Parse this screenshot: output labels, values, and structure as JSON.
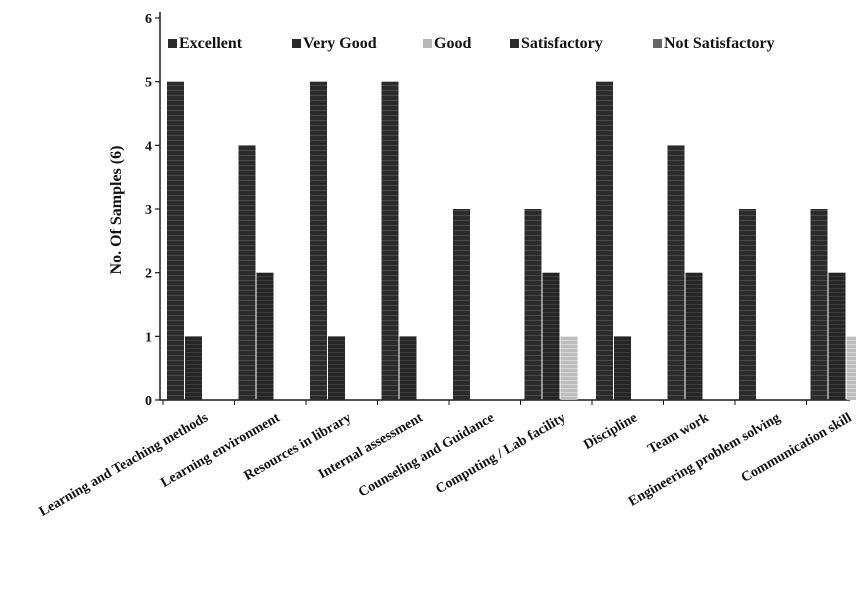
{
  "chart_data": {
    "type": "bar",
    "title": "",
    "xlabel": "",
    "ylabel": "No. Of Samples (6)",
    "ylim": [
      0,
      6
    ],
    "yticks": [
      0,
      1,
      2,
      3,
      4,
      5,
      6
    ],
    "grid": false,
    "legend_position": "top",
    "categories": [
      "Learning and Teaching methods",
      "Learning environment",
      "Resources in library",
      "Internal assessment",
      "Counseling and Guidance",
      "Computing / Lab facility",
      "Discipline",
      "Team work",
      "Engineering problem solving",
      "Communication skill"
    ],
    "series": [
      {
        "name": "Excellent",
        "color": "#2a2a2a",
        "values": [
          5,
          4,
          5,
          5,
          3,
          3,
          5,
          4,
          3,
          3
        ]
      },
      {
        "name": "Very Good",
        "color": "#222222",
        "values": [
          1,
          2,
          1,
          1,
          0,
          2,
          1,
          2,
          0,
          2
        ]
      },
      {
        "name": "Good",
        "color": "#b8b8b8",
        "values": [
          0,
          0,
          0,
          0,
          0,
          1,
          0,
          0,
          0,
          1
        ]
      },
      {
        "name": "Satisfactory",
        "color": "#333333",
        "values": [
          0,
          0,
          0,
          0,
          0,
          0,
          0,
          0,
          0,
          0
        ]
      },
      {
        "name": "Not Satisfactory",
        "color": "#555555",
        "values": [
          0,
          0,
          0,
          0,
          0,
          0,
          0,
          0,
          0,
          0
        ]
      }
    ]
  }
}
